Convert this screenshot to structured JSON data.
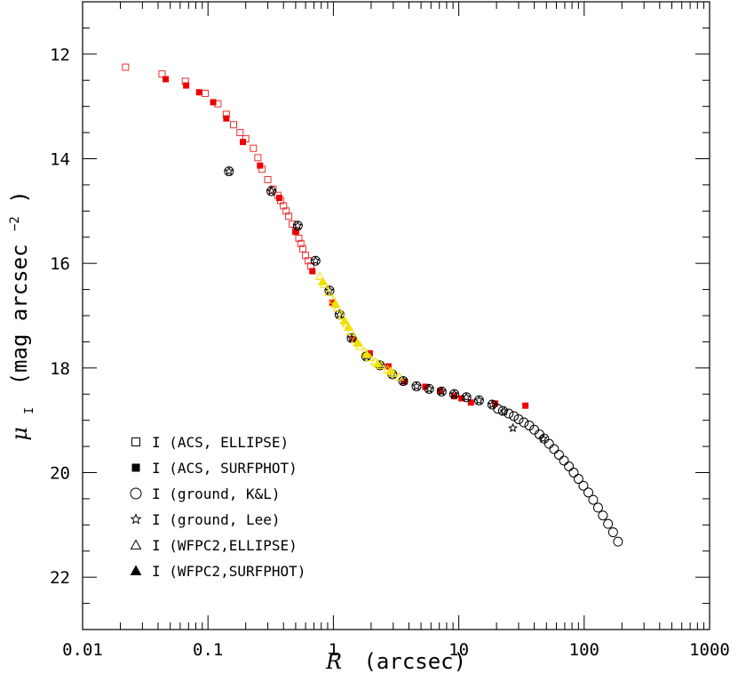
{
  "chart_data": {
    "type": "scatter",
    "title": "",
    "xlabel": {
      "symbol": "R",
      "unit": "(arcsec)"
    },
    "ylabel": {
      "symbol": "μ",
      "subscript": "I",
      "unit": "(mag arcsec",
      "exp": "−2",
      "close": ")"
    },
    "xscale": "log",
    "xlim": [
      0.01,
      1000
    ],
    "ylim": [
      23.0,
      11.0
    ],
    "y_inverted": true,
    "xticks": [
      0.01,
      0.1,
      1,
      10,
      100,
      1000
    ],
    "xtick_labels": [
      "0.01",
      "0.1",
      "1",
      "10",
      "100",
      "1000"
    ],
    "yticks": [
      12,
      14,
      16,
      18,
      20,
      22
    ],
    "ytick_labels": [
      "12",
      "14",
      "16",
      "18",
      "20",
      "22"
    ],
    "grid": false,
    "legend_position": "bottom-left",
    "series": [
      {
        "name": "I (ACS, ELLIPSE)",
        "marker": "square-open",
        "color": "#e83030",
        "legend_color": "#000000",
        "points": [
          [
            0.022,
            12.25
          ],
          [
            0.043,
            12.38
          ],
          [
            0.066,
            12.52
          ],
          [
            0.095,
            12.75
          ],
          [
            0.12,
            12.95
          ],
          [
            0.14,
            13.15
          ],
          [
            0.16,
            13.35
          ],
          [
            0.18,
            13.5
          ],
          [
            0.2,
            13.62
          ],
          [
            0.23,
            13.8
          ],
          [
            0.25,
            13.98
          ],
          [
            0.27,
            14.2
          ],
          [
            0.3,
            14.4
          ],
          [
            0.33,
            14.58
          ],
          [
            0.36,
            14.7
          ],
          [
            0.38,
            14.8
          ],
          [
            0.4,
            14.9
          ],
          [
            0.42,
            15.0
          ],
          [
            0.44,
            15.1
          ],
          [
            0.47,
            15.25
          ],
          [
            0.5,
            15.38
          ],
          [
            0.53,
            15.52
          ],
          [
            0.55,
            15.62
          ],
          [
            0.57,
            15.72
          ],
          [
            0.6,
            15.85
          ],
          [
            0.63,
            15.95
          ],
          [
            0.66,
            16.05
          ]
        ]
      },
      {
        "name": "I (ACS, SURFPHOT)",
        "marker": "square-filled",
        "color": "#ee0000",
        "legend_color": "#000000",
        "points": [
          [
            0.046,
            12.48
          ],
          [
            0.067,
            12.6
          ],
          [
            0.085,
            12.73
          ],
          [
            0.11,
            12.92
          ],
          [
            0.14,
            13.23
          ],
          [
            0.19,
            13.68
          ],
          [
            0.26,
            14.13
          ],
          [
            0.37,
            14.75
          ],
          [
            0.5,
            15.4
          ],
          [
            0.68,
            16.15
          ],
          [
            0.98,
            16.75
          ],
          [
            1.45,
            17.45
          ],
          [
            1.95,
            17.72
          ],
          [
            2.75,
            17.97
          ],
          [
            3.7,
            18.26
          ],
          [
            5.4,
            18.36
          ],
          [
            7.1,
            18.44
          ],
          [
            9.2,
            18.54
          ],
          [
            10.5,
            18.58
          ],
          [
            12.5,
            18.66
          ],
          [
            19.5,
            18.68
          ],
          [
            34.0,
            18.72
          ]
        ]
      },
      {
        "name": "I (ground, K&L)",
        "marker": "circle-open",
        "color": "#000000",
        "legend_color": "#000000",
        "points": [
          [
            0.147,
            14.24
          ],
          [
            0.32,
            14.62
          ],
          [
            0.52,
            15.28
          ],
          [
            0.72,
            15.95
          ],
          [
            0.93,
            16.52
          ],
          [
            1.12,
            16.98
          ],
          [
            1.4,
            17.43
          ],
          [
            1.83,
            17.78
          ],
          [
            2.35,
            17.95
          ],
          [
            2.95,
            18.12
          ],
          [
            3.6,
            18.25
          ],
          [
            4.6,
            18.35
          ],
          [
            5.8,
            18.4
          ],
          [
            7.3,
            18.45
          ],
          [
            9.2,
            18.5
          ],
          [
            11.5,
            18.56
          ],
          [
            14.5,
            18.62
          ],
          [
            18.5,
            18.7
          ],
          [
            20.5,
            18.78
          ],
          [
            22.5,
            18.82
          ],
          [
            25.0,
            18.87
          ],
          [
            27.5,
            18.92
          ],
          [
            30.0,
            18.98
          ],
          [
            33.0,
            19.04
          ],
          [
            36.5,
            19.1
          ],
          [
            40.0,
            19.18
          ],
          [
            44.0,
            19.27
          ],
          [
            48.0,
            19.35
          ],
          [
            52.5,
            19.45
          ],
          [
            57.5,
            19.55
          ],
          [
            63.0,
            19.66
          ],
          [
            69.0,
            19.77
          ],
          [
            75.5,
            19.88
          ],
          [
            82.5,
            20.0
          ],
          [
            90.0,
            20.12
          ],
          [
            98.5,
            20.25
          ],
          [
            108,
            20.38
          ],
          [
            118,
            20.52
          ],
          [
            129,
            20.67
          ],
          [
            141,
            20.82
          ],
          [
            155,
            20.98
          ],
          [
            170,
            21.14
          ],
          [
            186,
            21.32
          ]
        ]
      },
      {
        "name": "I (ground, Lee)",
        "marker": "star-open",
        "color": "#000000",
        "legend_color": "#000000",
        "points": [
          [
            0.147,
            14.24
          ],
          [
            0.32,
            14.62
          ],
          [
            0.52,
            15.28
          ],
          [
            0.72,
            15.95
          ],
          [
            0.93,
            16.52
          ],
          [
            1.12,
            16.98
          ],
          [
            1.4,
            17.43
          ],
          [
            1.83,
            17.78
          ],
          [
            2.35,
            17.95
          ],
          [
            2.95,
            18.12
          ],
          [
            3.6,
            18.25
          ],
          [
            4.6,
            18.35
          ],
          [
            5.8,
            18.4
          ],
          [
            7.3,
            18.45
          ],
          [
            9.2,
            18.5
          ],
          [
            11.5,
            18.56
          ],
          [
            14.5,
            18.62
          ],
          [
            18.5,
            18.7
          ],
          [
            23.0,
            18.83
          ],
          [
            27.0,
            19.15
          ],
          [
            47.0,
            19.35
          ]
        ]
      },
      {
        "name": "I (WFPC2,ELLIPSE)",
        "marker": "triangle-open",
        "color": "#f0e000",
        "legend_color": "#000000",
        "points": [
          [
            0.78,
            16.25
          ],
          [
            0.85,
            16.4
          ],
          [
            0.92,
            16.55
          ],
          [
            1.0,
            16.7
          ],
          [
            1.08,
            16.85
          ],
          [
            1.17,
            17.0
          ],
          [
            1.27,
            17.15
          ],
          [
            1.38,
            17.3
          ],
          [
            1.5,
            17.45
          ],
          [
            1.63,
            17.58
          ],
          [
            1.78,
            17.7
          ],
          [
            1.95,
            17.8
          ],
          [
            2.15,
            17.88
          ],
          [
            2.4,
            17.95
          ],
          [
            2.7,
            18.03
          ],
          [
            3.0,
            18.1
          ],
          [
            3.35,
            18.17
          ]
        ]
      },
      {
        "name": "I (WFPC2,SURFPHOT)",
        "marker": "triangle-filled",
        "color": "#f0e000",
        "legend_color": "#000000",
        "points": [
          [
            0.82,
            16.35
          ],
          [
            1.03,
            16.78
          ],
          [
            1.22,
            17.1
          ],
          [
            1.32,
            17.22
          ],
          [
            1.55,
            17.52
          ],
          [
            1.85,
            17.74
          ],
          [
            2.25,
            17.92
          ],
          [
            2.85,
            18.06
          ]
        ]
      }
    ]
  }
}
